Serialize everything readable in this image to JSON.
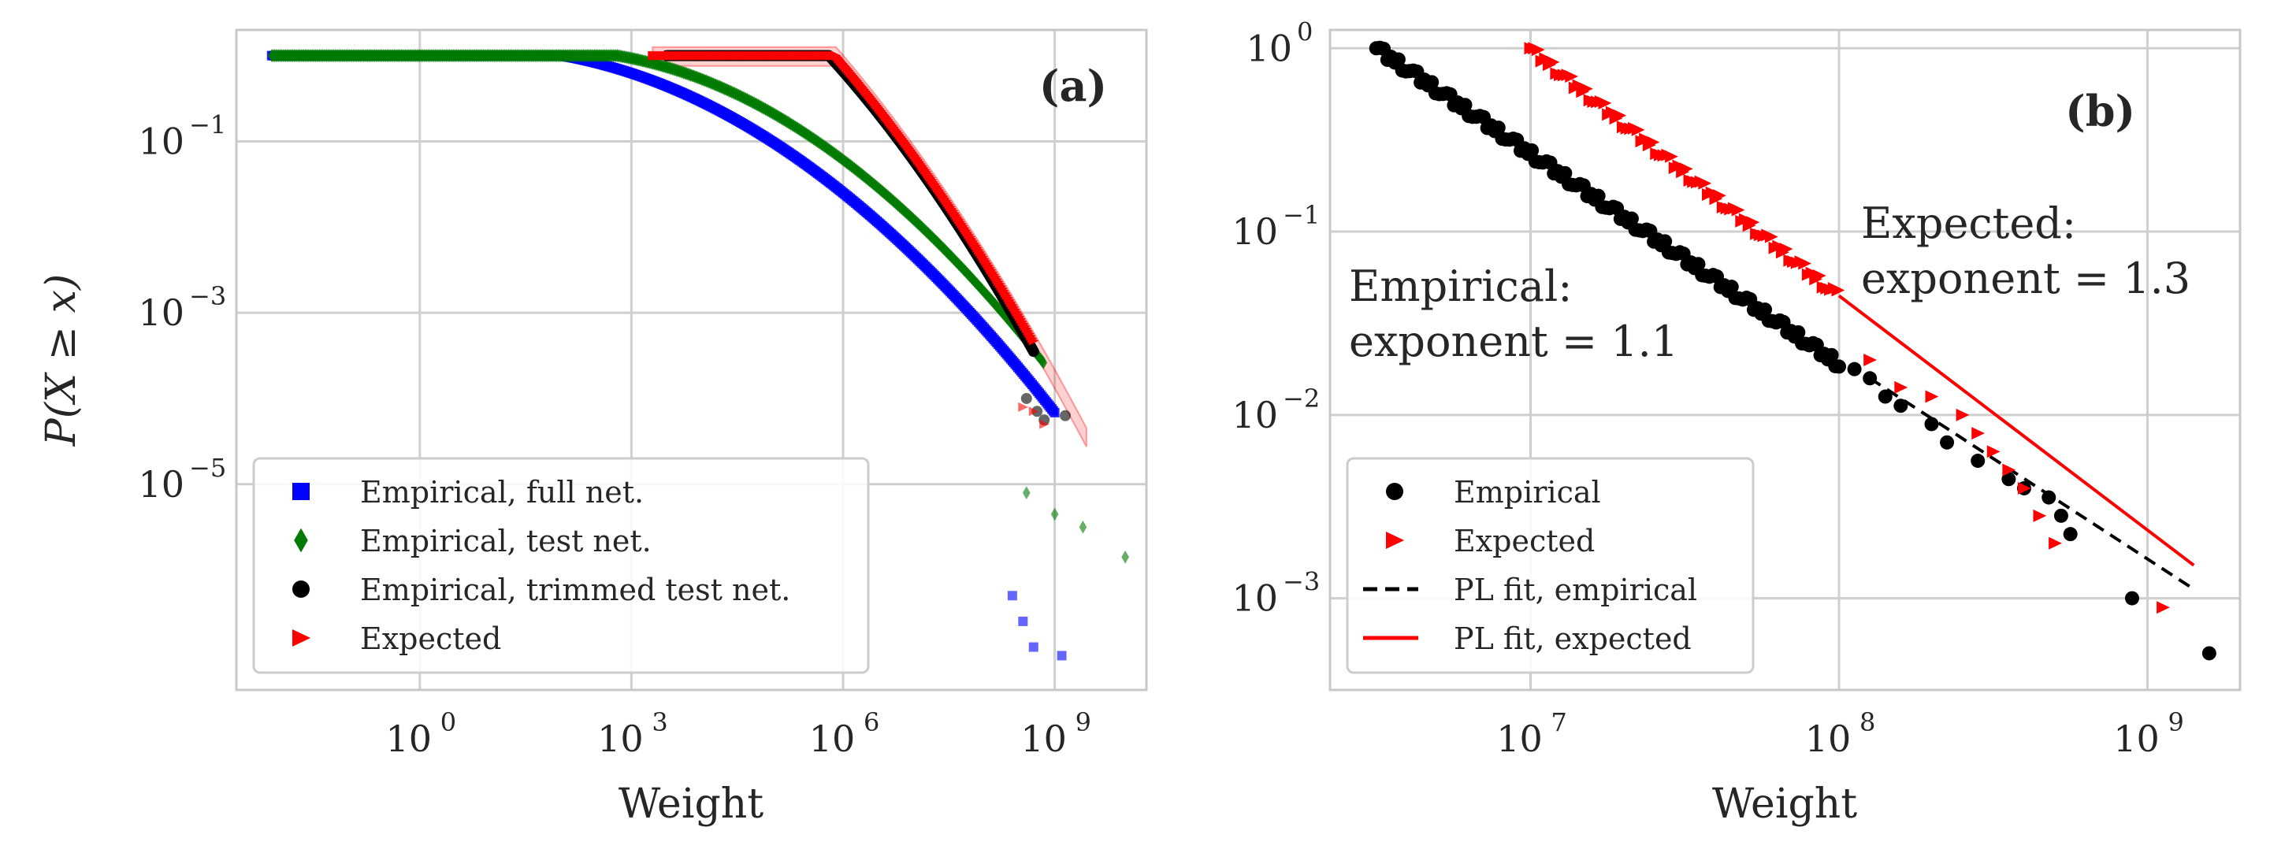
{
  "figure": {
    "shared_xlabel": "Weight"
  },
  "chart_data": [
    {
      "panel": "(a)",
      "type": "scatter",
      "title": "",
      "xlabel": "Weight",
      "ylabel": "P(X ≥ x)",
      "xscale": "log",
      "yscale": "log",
      "xlim_log10": [
        -2.6,
        10.3
      ],
      "ylim_log10": [
        -7.4,
        0.3
      ],
      "xticks": [
        {
          "label": "10",
          "exp": "0",
          "log10": 0
        },
        {
          "label": "10",
          "exp": "3",
          "log10": 3
        },
        {
          "label": "10",
          "exp": "6",
          "log10": 6
        },
        {
          "label": "10",
          "exp": "9",
          "log10": 9
        }
      ],
      "yticks": [
        {
          "label": "10",
          "exp": "−1",
          "log10": -1
        },
        {
          "label": "10",
          "exp": "−3",
          "log10": -3
        },
        {
          "label": "10",
          "exp": "−5",
          "log10": -5
        }
      ],
      "grid": true,
      "legend_position": "lower-left",
      "series": [
        {
          "name": "Empirical, full net.",
          "marker": "square",
          "color": "#0000ff",
          "curve": {
            "type": "decay",
            "x_min": -2.1,
            "x_max": 9.0,
            "c": 2.0,
            "a": 0.14,
            "b": 0.065
          },
          "tail_points": [
            [
              8.4,
              -6.3
            ],
            [
              8.55,
              -6.6
            ],
            [
              8.7,
              -6.9
            ],
            [
              9.1,
              -7.0
            ]
          ]
        },
        {
          "name": "Empirical, test net.",
          "marker": "diamond",
          "color": "#007a00",
          "curve": {
            "type": "decay",
            "x_min": -2.1,
            "x_max": 8.85,
            "c": 2.8,
            "a": 0.14,
            "b": 0.075
          },
          "tail_points": [
            [
              8.6,
              -5.1
            ],
            [
              9.0,
              -5.35
            ],
            [
              9.4,
              -5.5
            ],
            [
              10.0,
              -5.85
            ]
          ]
        },
        {
          "name": "Empirical, trimmed test net.",
          "marker": "circle",
          "color": "#000000",
          "curve": {
            "type": "decay",
            "x_min": 3.5,
            "x_max": 8.7,
            "c": 5.8,
            "a": 0.9,
            "b": 0.1
          },
          "tail_points": [
            [
              8.6,
              -4.0
            ],
            [
              8.75,
              -4.15
            ],
            [
              8.85,
              -4.25
            ],
            [
              9.15,
              -4.2
            ]
          ]
        },
        {
          "name": "Expected",
          "marker": "triangle-right",
          "color": "#ff0000",
          "curve": {
            "type": "decay",
            "x_min": 3.3,
            "x_max": 8.7,
            "c": 5.9,
            "a": 0.95,
            "b": 0.085
          },
          "tail_points": [
            [
              8.55,
              -4.1
            ],
            [
              8.7,
              -4.15
            ],
            [
              8.85,
              -4.3
            ]
          ],
          "confidence_band": {
            "color": "#ff0000",
            "lower_offset": -0.12,
            "upper_offset": 0.1,
            "x_min": 3.3,
            "x_max": 9.5
          }
        }
      ],
      "annotation": "(a)"
    },
    {
      "panel": "(b)",
      "type": "scatter",
      "title": "",
      "xlabel": "Weight",
      "ylabel": "",
      "xscale": "log",
      "yscale": "log",
      "xlim_log10": [
        6.35,
        9.3
      ],
      "ylim_log10": [
        -3.5,
        0.1
      ],
      "xticks": [
        {
          "label": "10",
          "exp": "7",
          "log10": 7
        },
        {
          "label": "10",
          "exp": "8",
          "log10": 8
        },
        {
          "label": "10",
          "exp": "9",
          "log10": 9
        }
      ],
      "yticks": [
        {
          "label": "10",
          "exp": "0",
          "log10": 0
        },
        {
          "label": "10",
          "exp": "−1",
          "log10": -1
        },
        {
          "label": "10",
          "exp": "−2",
          "log10": -2
        },
        {
          "label": "10",
          "exp": "−3",
          "log10": -3
        }
      ],
      "grid": true,
      "legend_position": "lower-left",
      "series": [
        {
          "name": "Empirical",
          "marker": "circle",
          "color": "#000000",
          "bulk": {
            "x_min": 6.5,
            "x_max": 8.0,
            "y_start": 0.0,
            "slope": -1.15
          },
          "tail_points": [
            [
              8.05,
              -1.75
            ],
            [
              8.1,
              -1.8
            ],
            [
              8.15,
              -1.9
            ],
            [
              8.2,
              -1.95
            ],
            [
              8.3,
              -2.05
            ],
            [
              8.35,
              -2.15
            ],
            [
              8.45,
              -2.25
            ],
            [
              8.55,
              -2.35
            ],
            [
              8.6,
              -2.4
            ],
            [
              8.68,
              -2.45
            ],
            [
              8.72,
              -2.55
            ],
            [
              8.75,
              -2.65
            ],
            [
              8.95,
              -3.0
            ],
            [
              9.2,
              -3.3
            ]
          ]
        },
        {
          "name": "Expected",
          "marker": "triangle-right",
          "color": "#ff0000",
          "bulk": {
            "x_min": 7.0,
            "x_max": 8.0,
            "y_start": 0.0,
            "slope": -1.35
          },
          "tail_points": [
            [
              8.1,
              -1.7
            ],
            [
              8.2,
              -1.85
            ],
            [
              8.3,
              -1.9
            ],
            [
              8.4,
              -2.0
            ],
            [
              8.45,
              -2.1
            ],
            [
              8.5,
              -2.2
            ],
            [
              8.55,
              -2.3
            ],
            [
              8.6,
              -2.4
            ],
            [
              8.65,
              -2.55
            ],
            [
              8.7,
              -2.7
            ],
            [
              9.05,
              -3.05
            ]
          ]
        },
        {
          "name": "PL fit, empirical",
          "type": "line",
          "style": "dashed",
          "color": "#000000",
          "points": [
            [
              8.1,
              -1.8
            ],
            [
              9.15,
              -2.95
            ]
          ]
        },
        {
          "name": "PL fit, expected",
          "type": "line",
          "style": "solid",
          "color": "#ff0000",
          "points": [
            [
              8.0,
              -1.35
            ],
            [
              9.15,
              -2.82
            ]
          ]
        }
      ],
      "annotations": {
        "panel_label": "(b)",
        "empirical_line1": "Empirical:",
        "empirical_line2": "exponent = 1.1",
        "expected_line1": "Expected:",
        "expected_line2": "exponent = 1.3"
      }
    }
  ]
}
